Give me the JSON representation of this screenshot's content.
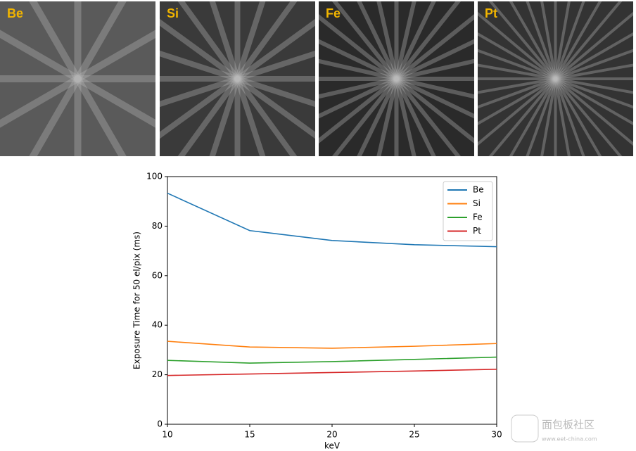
{
  "panels": [
    "Be",
    "Si",
    "Fe",
    "Pt"
  ],
  "chart_data": {
    "type": "line",
    "x_label": "keV",
    "y_label": "Exposure Time for 50 el/pix (ms)",
    "x": [
      10,
      15,
      20,
      25,
      30
    ],
    "series": [
      {
        "name": "Be",
        "color": "#1f77b4",
        "values": [
          93.3,
          78.2,
          74.2,
          72.5,
          71.7
        ]
      },
      {
        "name": "Si",
        "color": "#ff7f0e",
        "values": [
          33.5,
          31.2,
          30.7,
          31.5,
          32.6
        ]
      },
      {
        "name": "Fe",
        "color": "#2ca02c",
        "values": [
          25.8,
          24.7,
          25.3,
          26.2,
          27.1
        ]
      },
      {
        "name": "Pt",
        "color": "#d62728",
        "values": [
          19.7,
          20.3,
          20.9,
          21.5,
          22.2
        ]
      }
    ],
    "xlim": [
      10,
      30
    ],
    "xticks": [
      10,
      15,
      20,
      25,
      30
    ],
    "ylim": [
      0,
      100
    ],
    "yticks": [
      0,
      20,
      40,
      60,
      80,
      100
    ],
    "legend": "upper right",
    "grid": false
  },
  "watermark": {
    "title": "面包板社区",
    "url": "www.eet-china.com"
  }
}
